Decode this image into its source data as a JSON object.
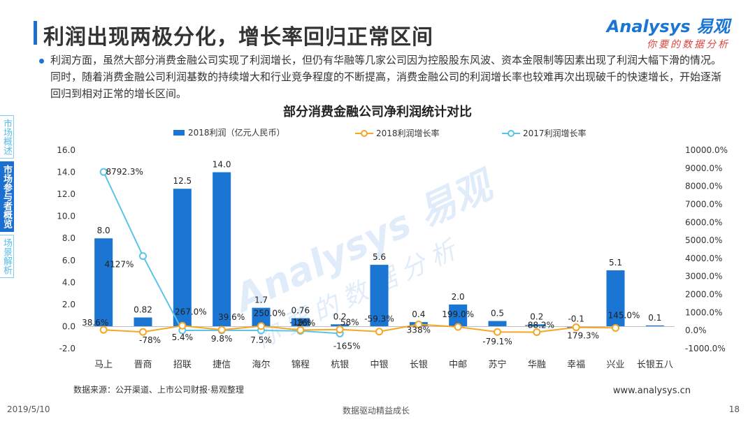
{
  "page": {
    "title": "利润出现两极分化，增长率回归正常区间",
    "intro": "利润方面，虽然大部分消费金融公司实现了利润增长，但仍有华融等几家公司因为控股股东风波、资本金限制等因素出现了利润大幅下滑的情况。同时，随着消费金融公司利润基数的持续增大和行业竞争程度的不断提高，消费金融公司的利润增长率也较难再次出现破千的快速增长，开始逐渐回归到相对正常的增长区间。"
  },
  "logo": {
    "main": "Analysys 易观",
    "sub": "你要的数据分析"
  },
  "side_nav": [
    {
      "label": "市场概述",
      "active": false
    },
    {
      "label": "市场参与者概览",
      "active": true
    },
    {
      "label": "场景解析",
      "active": false
    }
  ],
  "watermark": {
    "main": "Analysys 易观",
    "sub": "你要的数据分析"
  },
  "chart_data": {
    "type": "bar",
    "title": "部分消费金融公司净利润统计对比",
    "categories": [
      "马上",
      "晋商",
      "招联",
      "捷信",
      "海尔",
      "锦程",
      "杭银",
      "中银",
      "长银",
      "中邮",
      "苏宁",
      "华融",
      "幸福",
      "兴业",
      "长银五八"
    ],
    "series": [
      {
        "name": "2018利润（亿元人民币）",
        "type": "bar",
        "axis": "left",
        "color": "#1a76d2",
        "values": [
          8.0,
          0.82,
          12.5,
          14.0,
          1.7,
          0.76,
          0.2,
          5.6,
          0.4,
          2.0,
          0.5,
          0.2,
          -0.1,
          5.1,
          0.1
        ],
        "labels": [
          "8.0",
          "0.82",
          "12.5",
          "14.0",
          "1.7",
          "0.76",
          "0.2",
          "5.6",
          "0.4",
          "2.0",
          "0.5",
          "0.2",
          "-0.1",
          "5.1",
          "0.1"
        ]
      },
      {
        "name": "2018利润增长率",
        "type": "line",
        "axis": "right",
        "color": "#f5a623",
        "values": [
          38.6,
          -78,
          267.0,
          39.6,
          250.0,
          26,
          58,
          -59.3,
          338,
          199.0,
          -79.1,
          -88.2,
          179.3,
          145.0,
          null
        ],
        "labels": [
          "38.6%",
          "-78%",
          "267.0%",
          "39.6%",
          "250.0%",
          "26%",
          "58%",
          "-59.3%",
          "338%",
          "199.0%",
          "-79.1%",
          "-88.2%",
          "179.3%",
          "145.0%",
          ""
        ]
      },
      {
        "name": "2017利润增长率",
        "type": "line",
        "axis": "right",
        "color": "#5bc4e8",
        "values": [
          8792.3,
          4127,
          5.4,
          9.8,
          7.5,
          -19,
          -165,
          null,
          null,
          null,
          null,
          null,
          null,
          null,
          null
        ],
        "labels": [
          "8792.3%",
          "4127%",
          "5.4%",
          "9.8%",
          "7.5%",
          "-19%",
          "-165%",
          "",
          "",
          "",
          "",
          "",
          "",
          "",
          ""
        ]
      }
    ],
    "left_axis": {
      "ylim": [
        -2.0,
        16.0
      ],
      "ticks": [
        "16.0",
        "14.0",
        "12.0",
        "10.0",
        "8.0",
        "6.0",
        "4.0",
        "2.0",
        "0.0",
        "-2.0"
      ]
    },
    "right_axis": {
      "ylim": [
        -1000,
        10000
      ],
      "ticks": [
        "10000.0%",
        "9000.0%",
        "8000.0%",
        "7000.0%",
        "6000.0%",
        "5000.0%",
        "4000.0%",
        "3000.0%",
        "2000.0%",
        "1000.0%",
        "0.0%",
        "-1000.0%"
      ]
    },
    "legend_position": "top",
    "grid": false
  },
  "footer": {
    "source": "数据来源：公开渠道、上市公司财报·易观整理",
    "url": "www.analysys.cn",
    "date": "2019/5/10",
    "slogan": "数据驱动精益成长",
    "page_number": "18"
  }
}
